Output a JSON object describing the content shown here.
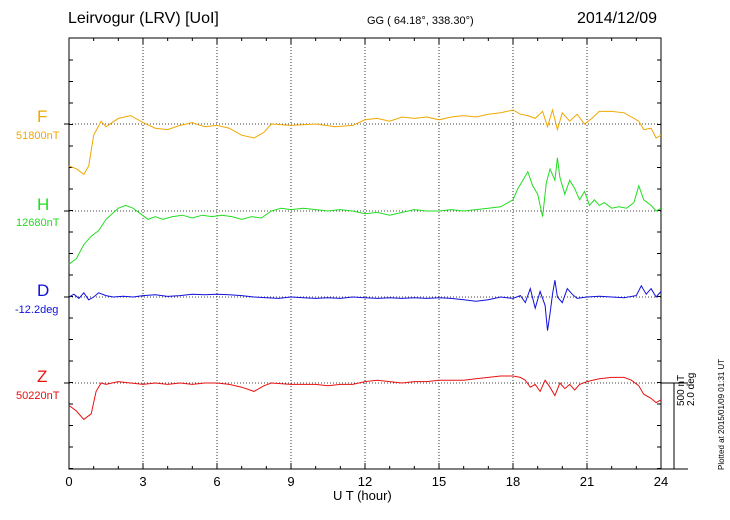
{
  "header": {
    "station": "Leirvogur (LRV)  [UoI]",
    "coords": "GG ( 64.18°, 338.30°)",
    "date": "2014/12/09"
  },
  "components": [
    {
      "name": "F",
      "baseline": "51800nT",
      "color": "#f0a800"
    },
    {
      "name": "H",
      "baseline": "12680nT",
      "color": "#22dd22"
    },
    {
      "name": "D",
      "baseline": "-12.2deg",
      "color": "#1010dd"
    },
    {
      "name": "Z",
      "baseline": "50220nT",
      "color": "#e81010"
    }
  ],
  "scale": {
    "line1": "500 nT",
    "line2": "2.0 deg"
  },
  "footer": {
    "plotted": "Plotted at 2015/01/09 01:31 UT"
  },
  "chart_data": {
    "type": "line",
    "xlabel": "U T (hour)",
    "xlim": [
      0,
      24
    ],
    "xticks": [
      0,
      3,
      6,
      9,
      12,
      15,
      18,
      21,
      24
    ],
    "grid": "vertical dotted lines every 3 hours, dotted baseline per trace",
    "y_units": "deviation from baseline in nT (D in arc-min)",
    "series": [
      {
        "name": "F",
        "baseline": "51800nT",
        "color": "#f0a800",
        "points": [
          [
            0,
            -150
          ],
          [
            0.3,
            -160
          ],
          [
            0.6,
            -180
          ],
          [
            0.8,
            -150
          ],
          [
            1.0,
            -40
          ],
          [
            1.3,
            10
          ],
          [
            1.5,
            -10
          ],
          [
            2.0,
            20
          ],
          [
            2.5,
            30
          ],
          [
            3.0,
            5
          ],
          [
            3.5,
            -15
          ],
          [
            4.0,
            -20
          ],
          [
            4.5,
            -5
          ],
          [
            5.0,
            5
          ],
          [
            5.5,
            -10
          ],
          [
            6.0,
            -5
          ],
          [
            6.5,
            -15
          ],
          [
            7.0,
            -40
          ],
          [
            7.5,
            -50
          ],
          [
            7.9,
            -30
          ],
          [
            8.2,
            0
          ],
          [
            9.0,
            -5
          ],
          [
            10.0,
            0
          ],
          [
            10.8,
            -10
          ],
          [
            11.5,
            -5
          ],
          [
            12.0,
            15
          ],
          [
            12.5,
            20
          ],
          [
            13.0,
            10
          ],
          [
            13.5,
            25
          ],
          [
            14.0,
            20
          ],
          [
            14.5,
            25
          ],
          [
            15.0,
            15
          ],
          [
            15.5,
            25
          ],
          [
            16.0,
            30
          ],
          [
            16.5,
            25
          ],
          [
            17.0,
            35
          ],
          [
            17.5,
            40
          ],
          [
            18.0,
            50
          ],
          [
            18.3,
            35
          ],
          [
            18.6,
            30
          ],
          [
            18.9,
            20
          ],
          [
            19.2,
            45
          ],
          [
            19.4,
            -10
          ],
          [
            19.6,
            50
          ],
          [
            19.8,
            -20
          ],
          [
            20.0,
            40
          ],
          [
            20.3,
            10
          ],
          [
            20.6,
            35
          ],
          [
            20.9,
            0
          ],
          [
            21.2,
            20
          ],
          [
            21.5,
            45
          ],
          [
            22.0,
            45
          ],
          [
            22.5,
            40
          ],
          [
            22.8,
            25
          ],
          [
            23.1,
            10
          ],
          [
            23.3,
            -20
          ],
          [
            23.6,
            -15
          ],
          [
            23.8,
            -50
          ],
          [
            24.0,
            -40
          ]
        ]
      },
      {
        "name": "H",
        "baseline": "12680nT",
        "color": "#22dd22",
        "points": [
          [
            0,
            -190
          ],
          [
            0.3,
            -170
          ],
          [
            0.6,
            -120
          ],
          [
            0.9,
            -90
          ],
          [
            1.2,
            -70
          ],
          [
            1.5,
            -30
          ],
          [
            2.0,
            10
          ],
          [
            2.3,
            20
          ],
          [
            2.6,
            10
          ],
          [
            2.9,
            -10
          ],
          [
            3.2,
            -30
          ],
          [
            3.5,
            -20
          ],
          [
            3.8,
            -30
          ],
          [
            4.2,
            -20
          ],
          [
            4.6,
            -15
          ],
          [
            5.0,
            -25
          ],
          [
            5.4,
            -15
          ],
          [
            5.8,
            -20
          ],
          [
            6.2,
            -15
          ],
          [
            6.6,
            -20
          ],
          [
            7.0,
            -30
          ],
          [
            7.4,
            -20
          ],
          [
            7.8,
            -25
          ],
          [
            8.2,
            0
          ],
          [
            8.6,
            10
          ],
          [
            9.0,
            5
          ],
          [
            9.5,
            10
          ],
          [
            10.0,
            5
          ],
          [
            10.5,
            0
          ],
          [
            11.0,
            5
          ],
          [
            11.5,
            0
          ],
          [
            12.0,
            -10
          ],
          [
            12.5,
            -5
          ],
          [
            13.0,
            -15
          ],
          [
            13.5,
            -5
          ],
          [
            14.0,
            5
          ],
          [
            14.5,
            0
          ],
          [
            15.0,
            0
          ],
          [
            15.5,
            5
          ],
          [
            16.0,
            0
          ],
          [
            16.5,
            5
          ],
          [
            17.0,
            10
          ],
          [
            17.5,
            15
          ],
          [
            18.0,
            40
          ],
          [
            18.2,
            80
          ],
          [
            18.4,
            110
          ],
          [
            18.6,
            140
          ],
          [
            18.8,
            90
          ],
          [
            19.0,
            60
          ],
          [
            19.1,
            20
          ],
          [
            19.2,
            -20
          ],
          [
            19.35,
            100
          ],
          [
            19.5,
            150
          ],
          [
            19.7,
            110
          ],
          [
            19.8,
            190
          ],
          [
            19.9,
            120
          ],
          [
            20.1,
            60
          ],
          [
            20.3,
            110
          ],
          [
            20.5,
            80
          ],
          [
            20.7,
            40
          ],
          [
            20.9,
            70
          ],
          [
            21.1,
            20
          ],
          [
            21.3,
            40
          ],
          [
            21.5,
            20
          ],
          [
            21.7,
            30
          ],
          [
            22.0,
            10
          ],
          [
            22.3,
            15
          ],
          [
            22.6,
            10
          ],
          [
            22.9,
            30
          ],
          [
            23.1,
            90
          ],
          [
            23.3,
            40
          ],
          [
            23.6,
            20
          ],
          [
            23.8,
            0
          ],
          [
            24.0,
            10
          ]
        ]
      },
      {
        "name": "D",
        "baseline": "-12.2deg",
        "color": "#1010dd",
        "points": [
          [
            0,
            0
          ],
          [
            0.2,
            10
          ],
          [
            0.4,
            -5
          ],
          [
            0.6,
            15
          ],
          [
            0.8,
            -10
          ],
          [
            1.0,
            0
          ],
          [
            1.2,
            15
          ],
          [
            1.5,
            5
          ],
          [
            1.8,
            0
          ],
          [
            2.2,
            3
          ],
          [
            2.6,
            0
          ],
          [
            3.0,
            5
          ],
          [
            3.5,
            8
          ],
          [
            4.0,
            2
          ],
          [
            4.5,
            5
          ],
          [
            5.0,
            10
          ],
          [
            5.5,
            8
          ],
          [
            6.0,
            10
          ],
          [
            6.5,
            8
          ],
          [
            7.0,
            5
          ],
          [
            7.5,
            0
          ],
          [
            8.0,
            -3
          ],
          [
            8.5,
            -5
          ],
          [
            9.0,
            0
          ],
          [
            9.5,
            -3
          ],
          [
            10.0,
            -5
          ],
          [
            10.5,
            -3
          ],
          [
            11.0,
            -5
          ],
          [
            11.5,
            0
          ],
          [
            12.0,
            -3
          ],
          [
            12.5,
            -5
          ],
          [
            13.0,
            -3
          ],
          [
            13.5,
            -5
          ],
          [
            14.0,
            -3
          ],
          [
            14.5,
            -5
          ],
          [
            15.0,
            -3
          ],
          [
            15.5,
            -5
          ],
          [
            16.0,
            -10
          ],
          [
            16.5,
            -15
          ],
          [
            17.0,
            -10
          ],
          [
            17.5,
            0
          ],
          [
            18.0,
            -5
          ],
          [
            18.3,
            5
          ],
          [
            18.5,
            -20
          ],
          [
            18.7,
            30
          ],
          [
            18.9,
            -40
          ],
          [
            19.1,
            20
          ],
          [
            19.3,
            -30
          ],
          [
            19.4,
            -120
          ],
          [
            19.5,
            -60
          ],
          [
            19.6,
            10
          ],
          [
            19.7,
            60
          ],
          [
            19.8,
            0
          ],
          [
            20.0,
            -20
          ],
          [
            20.2,
            30
          ],
          [
            20.4,
            10
          ],
          [
            20.6,
            -5
          ],
          [
            21.0,
            0
          ],
          [
            21.5,
            3
          ],
          [
            22.0,
            0
          ],
          [
            22.5,
            -3
          ],
          [
            23.0,
            5
          ],
          [
            23.2,
            40
          ],
          [
            23.4,
            10
          ],
          [
            23.6,
            30
          ],
          [
            23.8,
            0
          ],
          [
            24.0,
            20
          ]
        ]
      },
      {
        "name": "Z",
        "baseline": "50220nT",
        "color": "#e81010",
        "points": [
          [
            0,
            -80
          ],
          [
            0.3,
            -100
          ],
          [
            0.6,
            -130
          ],
          [
            0.9,
            -110
          ],
          [
            1.1,
            -30
          ],
          [
            1.3,
            0
          ],
          [
            1.5,
            -5
          ],
          [
            2.0,
            5
          ],
          [
            2.5,
            0
          ],
          [
            3.0,
            -5
          ],
          [
            3.5,
            0
          ],
          [
            4.0,
            -5
          ],
          [
            4.5,
            0
          ],
          [
            5.0,
            -5
          ],
          [
            5.5,
            0
          ],
          [
            6.0,
            0
          ],
          [
            6.5,
            -5
          ],
          [
            7.0,
            -15
          ],
          [
            7.5,
            -30
          ],
          [
            7.9,
            -10
          ],
          [
            8.2,
            0
          ],
          [
            9.0,
            -5
          ],
          [
            10.0,
            -5
          ],
          [
            10.5,
            -10
          ],
          [
            11.0,
            -5
          ],
          [
            11.5,
            -5
          ],
          [
            12.0,
            5
          ],
          [
            12.5,
            10
          ],
          [
            13.0,
            5
          ],
          [
            13.5,
            0
          ],
          [
            14.0,
            5
          ],
          [
            14.5,
            5
          ],
          [
            15.0,
            10
          ],
          [
            15.5,
            10
          ],
          [
            16.0,
            10
          ],
          [
            16.5,
            15
          ],
          [
            17.0,
            20
          ],
          [
            17.5,
            25
          ],
          [
            18.0,
            25
          ],
          [
            18.3,
            20
          ],
          [
            18.5,
            10
          ],
          [
            18.7,
            -15
          ],
          [
            18.9,
            -5
          ],
          [
            19.1,
            -30
          ],
          [
            19.3,
            10
          ],
          [
            19.5,
            -15
          ],
          [
            19.7,
            -45
          ],
          [
            19.9,
            0
          ],
          [
            20.1,
            -20
          ],
          [
            20.3,
            -5
          ],
          [
            20.5,
            -25
          ],
          [
            20.7,
            -5
          ],
          [
            21.0,
            5
          ],
          [
            21.5,
            15
          ],
          [
            22.0,
            20
          ],
          [
            22.5,
            20
          ],
          [
            22.8,
            10
          ],
          [
            23.1,
            -10
          ],
          [
            23.3,
            -40
          ],
          [
            23.6,
            -55
          ],
          [
            23.8,
            -70
          ],
          [
            24.0,
            -60
          ]
        ]
      }
    ]
  }
}
